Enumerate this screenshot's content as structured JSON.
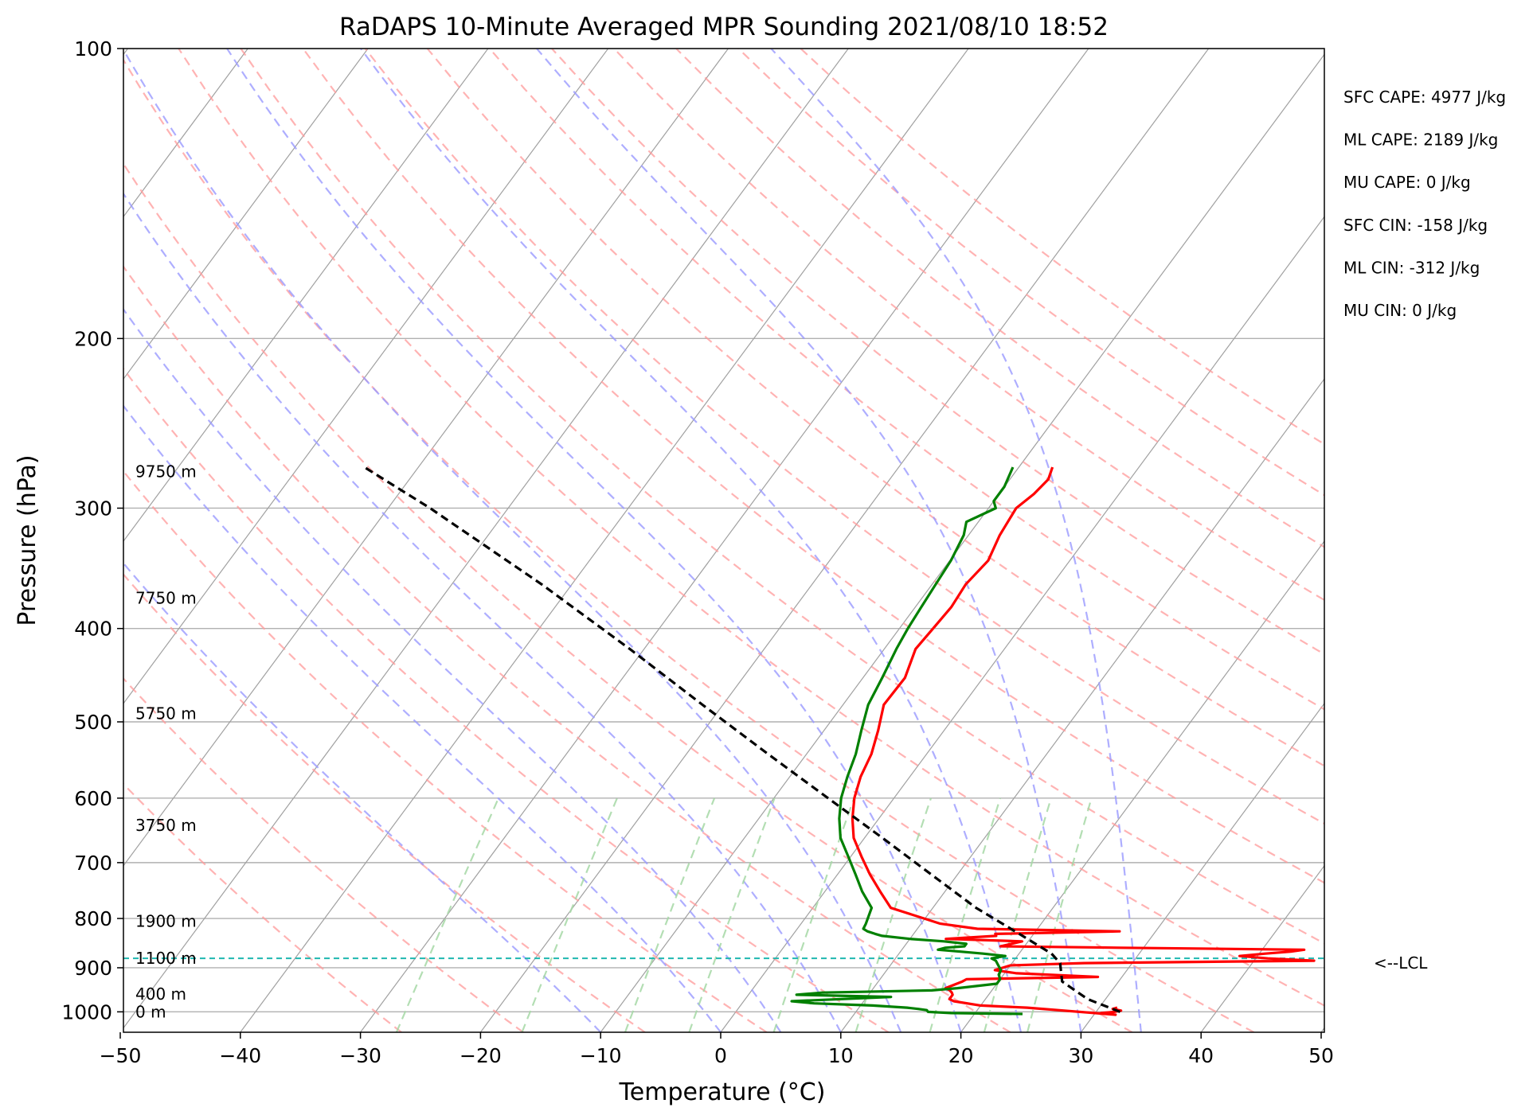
{
  "chart_data": {
    "type": "line",
    "variant": "skew-t log-p sounding",
    "title": "RaDAPS 10-Minute Averaged MPR Sounding 2021/08/10 18:52",
    "xlabel": "Temperature (°C)",
    "ylabel": "Pressure (hPa)",
    "xlim": [
      -50,
      50
    ],
    "ylim_hpa": [
      1050,
      100
    ],
    "y_scale": "log",
    "x_ticks": [
      "−50",
      "−40",
      "−30",
      "−20",
      "−10",
      "0",
      "10",
      "20",
      "30",
      "40",
      "50"
    ],
    "y_ticks": [
      "100",
      "200",
      "300",
      "400",
      "500",
      "600",
      "700",
      "800",
      "900",
      "1000"
    ],
    "grid": true,
    "series": [
      {
        "role": "temperature",
        "color": "#ff0000",
        "pressure_hpa": [
          990,
          993,
          997,
          1000,
          1003,
          1007,
          990,
          985,
          975,
          970,
          960,
          955,
          950,
          945,
          930,
          925,
          920,
          912,
          905,
          895,
          890,
          885,
          880,
          875,
          870,
          866,
          862,
          858,
          855,
          845,
          840,
          834,
          830,
          825,
          820,
          810,
          780,
          750,
          720,
          690,
          660,
          630,
          600,
          570,
          540,
          510,
          480,
          450,
          420,
          400,
          380,
          360,
          340,
          320,
          300,
          290,
          280,
          272
        ],
        "temperature_c": [
          31.5,
          31.2,
          32.0,
          31.5,
          30.5,
          31.8,
          24.0,
          20.0,
          17.5,
          17.0,
          17.0,
          16.8,
          16.5,
          16.0,
          17.0,
          17.2,
          28.0,
          21.0,
          19.0,
          20.0,
          26.0,
          45.0,
          41.0,
          38.5,
          40.5,
          42.5,
          43.5,
          28.0,
          18.0,
          19.5,
          13.0,
          17.0,
          16.8,
          27.0,
          15.0,
          11.6,
          6.5,
          4.6,
          2.7,
          0.9,
          -0.9,
          -2.2,
          -3.3,
          -4.1,
          -4.6,
          -5.5,
          -6.6,
          -6.5,
          -7.4,
          -7.2,
          -7.0,
          -7.2,
          -6.8,
          -7.4,
          -7.7,
          -7.1,
          -6.8,
          -7.2
        ]
      },
      {
        "role": "dewpoint",
        "color": "#008000",
        "pressure_hpa": [
          1005,
          1003,
          1000,
          996,
          993,
          990,
          985,
          980,
          975,
          965,
          960,
          955,
          950,
          945,
          935,
          925,
          915,
          905,
          895,
          885,
          880,
          875,
          870,
          866,
          862,
          858,
          855,
          850,
          845,
          840,
          834,
          830,
          825,
          820,
          810,
          780,
          750,
          720,
          690,
          660,
          630,
          600,
          570,
          540,
          510,
          480,
          450,
          420,
          400,
          380,
          360,
          340,
          320,
          310,
          300,
          295,
          285,
          272
        ],
        "temperature_c": [
          24.0,
          18.0,
          16.0,
          15.8,
          15.0,
          14.0,
          11.0,
          6.0,
          4.0,
          12.0,
          4.0,
          6.0,
          15.0,
          17.0,
          20.0,
          20.0,
          19.6,
          19.5,
          19.0,
          18.5,
          18.0,
          19.0,
          17.0,
          15.0,
          13.0,
          13.5,
          15.0,
          15.0,
          13.0,
          10.0,
          7.5,
          6.8,
          6.0,
          5.5,
          5.4,
          4.9,
          3.1,
          1.5,
          -0.2,
          -2.0,
          -3.3,
          -4.4,
          -5.2,
          -5.9,
          -6.9,
          -7.9,
          -8.4,
          -9.0,
          -9.3,
          -9.5,
          -9.7,
          -9.9,
          -10.4,
          -11.0,
          -9.4,
          -10.0,
          -10.0,
          -10.5
        ]
      },
      {
        "role": "parcel",
        "color": "#000000",
        "pressure_hpa": [
          1000,
          970,
          930,
          890,
          870,
          830,
          780,
          720,
          660,
          600,
          540,
          480,
          420,
          360,
          300,
          272
        ],
        "temperature_c": [
          32.0,
          28.5,
          25.3,
          24.0,
          22.7,
          18.8,
          13.6,
          7.8,
          1.5,
          -5.5,
          -13.2,
          -21.7,
          -31.2,
          -42.5,
          -56.5,
          -64.5
        ]
      }
    ],
    "lcl_hpa": 880,
    "lcl_label": "<--LCL",
    "height_labels": [
      {
        "text": "0 m",
        "pressure_hpa": 1000
      },
      {
        "text": "400 m",
        "pressure_hpa": 958
      },
      {
        "text": "1100 m",
        "pressure_hpa": 880
      },
      {
        "text": "1900 m",
        "pressure_hpa": 805
      },
      {
        "text": "3750 m",
        "pressure_hpa": 640
      },
      {
        "text": "5750 m",
        "pressure_hpa": 490
      },
      {
        "text": "7750 m",
        "pressure_hpa": 372
      },
      {
        "text": "9750 m",
        "pressure_hpa": 275
      }
    ],
    "annotations": [
      "SFC CAPE: 4977 J/kg",
      "ML CAPE: 2189 J/kg",
      "MU CAPE: 0 J/kg",
      "SFC CIN: -158 J/kg",
      "ML CIN: -312 J/kg",
      "MU CIN: 0 J/kg"
    ],
    "background_colors": {
      "isotherm": "#a0a0a0",
      "isobar": "#b0b0b0",
      "dry_adiabat": "#ff9a9a",
      "moist_adiabat": "#9a9aff",
      "mixing_ratio": "#a6d8a6",
      "lcl_line": "#1fb8b0"
    }
  }
}
